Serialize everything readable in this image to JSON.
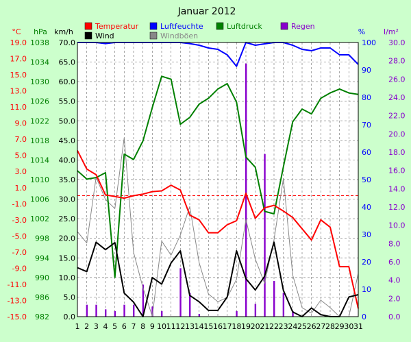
{
  "chart_data": {
    "type": "line",
    "title": "Januar 2012",
    "x": [
      1,
      2,
      3,
      4,
      5,
      6,
      7,
      8,
      9,
      10,
      11,
      12,
      13,
      14,
      15,
      16,
      17,
      18,
      19,
      20,
      21,
      22,
      23,
      24,
      25,
      26,
      27,
      28,
      29,
      30,
      31
    ],
    "axes": {
      "temp": {
        "unit": "°C",
        "ticks": [
          "19.0",
          "17.0",
          "15.0",
          "13.0",
          "11.0",
          "9.0",
          "7.0",
          "5.0",
          "3.0",
          "1.0",
          "-1.0",
          "-3.0",
          "-5.0",
          "-7.0",
          "-9.0",
          "-11.0",
          "-13.0",
          "-15.0"
        ],
        "range": [
          -15,
          19
        ],
        "color": "#ff0000"
      },
      "pressure": {
        "unit": "hPa",
        "ticks": [
          "1038",
          "1034",
          "1030",
          "1026",
          "1022",
          "1018",
          "1014",
          "1010",
          "1006",
          "1002",
          "998",
          "994",
          "990",
          "986",
          "982"
        ],
        "range": [
          982,
          1038
        ],
        "color": "#008000"
      },
      "wind": {
        "unit": "km/h",
        "ticks": [
          "70.0",
          "65.0",
          "60.0",
          "55.0",
          "50.0",
          "45.0",
          "40.0",
          "35.0",
          "30.0",
          "25.0",
          "20.0",
          "15.0",
          "10.0",
          "5.0",
          "0.0"
        ],
        "range": [
          0,
          70
        ],
        "color": "#000000"
      },
      "humidity": {
        "unit": "%",
        "ticks": [
          "100",
          "90",
          "80",
          "70",
          "60",
          "50",
          "40",
          "30",
          "20",
          "10",
          "0"
        ],
        "range": [
          0,
          100
        ],
        "color": "#0000ff"
      },
      "rain": {
        "unit": "l/m²",
        "ticks": [
          "30.0",
          "28.0",
          "26.0",
          "24.0",
          "22.0",
          "20.0",
          "18.0",
          "16.0",
          "14.0",
          "12.0",
          "10.0",
          "8.0",
          "6.0",
          "4.0",
          "2.0",
          "0.0"
        ],
        "range": [
          0,
          30
        ],
        "color": "#8800cc"
      }
    },
    "series": [
      {
        "name": "Temperatur",
        "axis": "temp",
        "color": "#ff0000",
        "values": [
          5.6,
          3.3,
          2.6,
          0.1,
          -0.1,
          -0.3,
          0.0,
          0.2,
          0.5,
          0.6,
          1.3,
          0.7,
          -2.4,
          -3.0,
          -4.6,
          -4.6,
          -3.6,
          -3.1,
          0.3,
          -2.8,
          -1.5,
          -1.2,
          -1.9,
          -2.7,
          -4.1,
          -5.5,
          -3.0,
          -3.9,
          -8.8,
          -8.8,
          -14.0
        ]
      },
      {
        "name": "Luftfeuchte",
        "axis": "humidity",
        "color": "#0000ff",
        "values": [
          100,
          100,
          100,
          99.6,
          100,
          100,
          100,
          100,
          100,
          100,
          100,
          100,
          99.6,
          99,
          98,
          97.5,
          95.5,
          91.3,
          100,
          99,
          99.5,
          100,
          100,
          99,
          97.5,
          97,
          98,
          98,
          95.5,
          95.5,
          92
        ]
      },
      {
        "name": "Luftdruck",
        "axis": "pressure",
        "color": "#008000",
        "values": [
          1011.8,
          1010.1,
          1010.4,
          1011.4,
          990,
          1015.2,
          1014.1,
          1017.9,
          1024.7,
          1031.1,
          1030.5,
          1021.3,
          1022.7,
          1025.4,
          1026.6,
          1028.5,
          1029.6,
          1025.8,
          1014.6,
          1012.5,
          1003.5,
          1003,
          1012.6,
          1021.8,
          1024.4,
          1023.4,
          1026.6,
          1027.7,
          1028.5,
          1027.7,
          1027.4
        ]
      },
      {
        "name": "Wind",
        "axis": "wind",
        "color": "#000000",
        "values": [
          12.5,
          11.5,
          19,
          17.1,
          18.9,
          6,
          3.7,
          0,
          10,
          8.3,
          13.7,
          16.8,
          5.4,
          3.8,
          1.6,
          1.6,
          5,
          16.8,
          9.7,
          6.8,
          10.3,
          19,
          6.7,
          1.2,
          0,
          2.2,
          0.5,
          0,
          0,
          5,
          5.6
        ]
      },
      {
        "name": "Windböen",
        "axis": "wind",
        "color": "#888888",
        "values": [
          21.7,
          18.8,
          35.6,
          29.9,
          27.6,
          45.7,
          16.4,
          7.4,
          0.1,
          19.3,
          15.7,
          20.8,
          28.1,
          13.8,
          5.8,
          3.8,
          4.9,
          9.5,
          24.8,
          14.7,
          8.5,
          19.6,
          35.3,
          10.6,
          2.3,
          0.9,
          4.2,
          2.3,
          0,
          0,
          11.1
        ]
      },
      {
        "name": "Regen",
        "axis": "rain",
        "color": "#8800cc",
        "type": "bar",
        "values": [
          0,
          1.3,
          1.3,
          0.8,
          0.6,
          1.3,
          1.3,
          3.5,
          1.1,
          0.6,
          0,
          5.3,
          2.6,
          0.3,
          0,
          0,
          0,
          0.6,
          27.7,
          1.4,
          17.8,
          3.9,
          2.6,
          0.6,
          0,
          0,
          0,
          0,
          0,
          0,
          0
        ]
      }
    ],
    "legend_rows": [
      [
        {
          "name": "Temperatur",
          "color": "#ff0000"
        },
        {
          "name": "Luftfeuchte",
          "color": "#0000ff"
        },
        {
          "name": "Luftdruck",
          "color": "#008000"
        },
        {
          "name": "Regen",
          "color": "#8800cc"
        }
      ],
      [
        {
          "name": "Wind",
          "color": "#000000"
        },
        {
          "name": "Windböen",
          "color": "#888888"
        }
      ]
    ],
    "grid": true,
    "legend_placement": "top"
  }
}
